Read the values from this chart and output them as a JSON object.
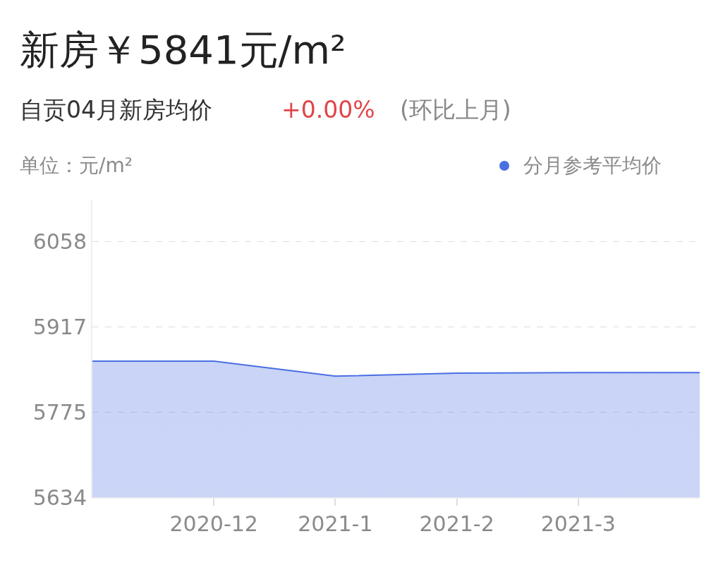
{
  "chart_data": {
    "type": "area",
    "title": "新房￥5841元/m²",
    "subtitle": "自贡04月新房均价",
    "annotations": [
      "+0.00%",
      "(环比上月)"
    ],
    "ylabel": "单位：元/m²",
    "categories": [
      null,
      "2020-12",
      "2021-1",
      "2021-2",
      "2021-3",
      null
    ],
    "series": [
      {
        "name": "分月参考平均价",
        "color": "#4a6fe3",
        "values": [
          5860,
          5860,
          5835,
          5840,
          5841,
          5841
        ]
      }
    ],
    "ylim": [
      5634,
      6128
    ],
    "yticks": [
      5634,
      5775,
      5917,
      6058
    ],
    "grid": "y",
    "line_style": "solid",
    "marker": "none",
    "legend": "top right"
  }
}
